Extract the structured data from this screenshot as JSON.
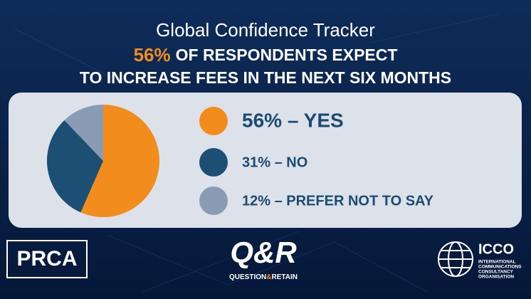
{
  "chart_data": {
    "type": "pie",
    "title": "Global Confidence Tracker",
    "subtitle_highlight": "56%",
    "subtitle_line1": "OF RESPONDENTS EXPECT",
    "subtitle_line2": "TO INCREASE FEES IN THE NEXT SIX MONTHS",
    "categories": [
      "56% – YES",
      "31% – NO",
      "12% – PREFER NOT TO SAY"
    ],
    "values": [
      56,
      31,
      12
    ],
    "colors": [
      "#f28c1c",
      "#1d4e74",
      "#8a9bb5"
    ]
  },
  "logos": {
    "prca": "PRCA",
    "qr": "Q&R",
    "qr_sub": [
      "QUESTION",
      "&",
      "RETAIN"
    ],
    "icco": "ICCO",
    "icco_sub": [
      "INTERNATIONAL",
      "COMMUNICATIONS",
      "CONSULTANCY",
      "ORGANISATION"
    ]
  }
}
